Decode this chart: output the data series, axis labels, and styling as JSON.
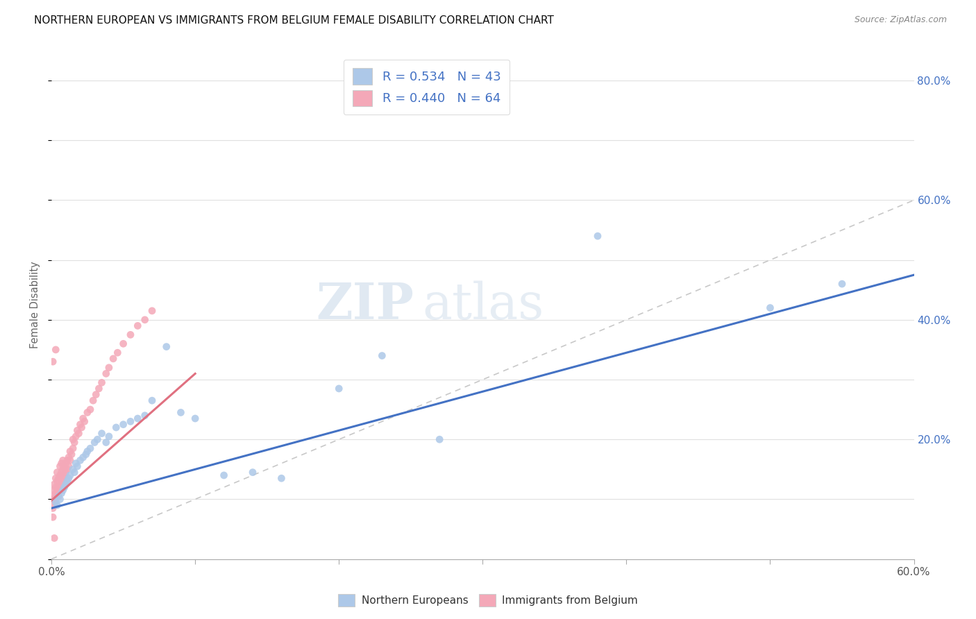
{
  "title": "NORTHERN EUROPEAN VS IMMIGRANTS FROM BELGIUM FEMALE DISABILITY CORRELATION CHART",
  "source": "Source: ZipAtlas.com",
  "ylabel": "Female Disability",
  "xlim": [
    0,
    0.6
  ],
  "ylim": [
    0,
    0.85
  ],
  "blue_R": 0.534,
  "blue_N": 43,
  "pink_R": 0.44,
  "pink_N": 64,
  "blue_color": "#adc8e8",
  "pink_color": "#f4a8b8",
  "blue_line_color": "#4472C4",
  "pink_line_color": "#e07080",
  "diagonal_color": "#c8c8c8",
  "watermark_zip": "ZIP",
  "watermark_atlas": "atlas",
  "blue_scatter_x": [
    0.003,
    0.004,
    0.005,
    0.006,
    0.007,
    0.008,
    0.009,
    0.01,
    0.011,
    0.012,
    0.013,
    0.015,
    0.016,
    0.017,
    0.018,
    0.02,
    0.022,
    0.024,
    0.025,
    0.027,
    0.03,
    0.032,
    0.035,
    0.038,
    0.04,
    0.045,
    0.05,
    0.055,
    0.06,
    0.065,
    0.07,
    0.08,
    0.09,
    0.1,
    0.12,
    0.14,
    0.16,
    0.2,
    0.23,
    0.27,
    0.38,
    0.5,
    0.55
  ],
  "blue_scatter_y": [
    0.095,
    0.09,
    0.105,
    0.1,
    0.11,
    0.115,
    0.12,
    0.125,
    0.13,
    0.135,
    0.14,
    0.15,
    0.145,
    0.16,
    0.155,
    0.165,
    0.17,
    0.175,
    0.18,
    0.185,
    0.195,
    0.2,
    0.21,
    0.195,
    0.205,
    0.22,
    0.225,
    0.23,
    0.235,
    0.24,
    0.265,
    0.355,
    0.245,
    0.235,
    0.14,
    0.145,
    0.135,
    0.285,
    0.34,
    0.2,
    0.54,
    0.42,
    0.46
  ],
  "pink_scatter_x": [
    0.001,
    0.001,
    0.001,
    0.002,
    0.002,
    0.002,
    0.003,
    0.003,
    0.003,
    0.004,
    0.004,
    0.004,
    0.005,
    0.005,
    0.005,
    0.006,
    0.006,
    0.006,
    0.007,
    0.007,
    0.007,
    0.008,
    0.008,
    0.008,
    0.009,
    0.009,
    0.01,
    0.01,
    0.011,
    0.011,
    0.012,
    0.012,
    0.013,
    0.013,
    0.014,
    0.015,
    0.015,
    0.016,
    0.017,
    0.018,
    0.019,
    0.02,
    0.021,
    0.022,
    0.023,
    0.025,
    0.027,
    0.029,
    0.031,
    0.033,
    0.035,
    0.038,
    0.04,
    0.043,
    0.046,
    0.05,
    0.055,
    0.06,
    0.065,
    0.07,
    0.003,
    0.001,
    0.002,
    0.001
  ],
  "pink_scatter_y": [
    0.115,
    0.1,
    0.085,
    0.105,
    0.095,
    0.125,
    0.11,
    0.12,
    0.135,
    0.115,
    0.13,
    0.145,
    0.105,
    0.12,
    0.135,
    0.125,
    0.14,
    0.155,
    0.13,
    0.145,
    0.16,
    0.135,
    0.15,
    0.165,
    0.14,
    0.155,
    0.145,
    0.16,
    0.15,
    0.165,
    0.155,
    0.17,
    0.165,
    0.18,
    0.175,
    0.185,
    0.2,
    0.195,
    0.205,
    0.215,
    0.21,
    0.225,
    0.22,
    0.235,
    0.23,
    0.245,
    0.25,
    0.265,
    0.275,
    0.285,
    0.295,
    0.31,
    0.32,
    0.335,
    0.345,
    0.36,
    0.375,
    0.39,
    0.4,
    0.415,
    0.35,
    0.33,
    0.035,
    0.07
  ],
  "blue_line_x0": 0.0,
  "blue_line_y0": 0.085,
  "blue_line_x1": 0.6,
  "blue_line_y1": 0.475,
  "pink_line_x0": 0.0,
  "pink_line_y0": 0.098,
  "pink_line_x1": 0.1,
  "pink_line_y1": 0.31
}
